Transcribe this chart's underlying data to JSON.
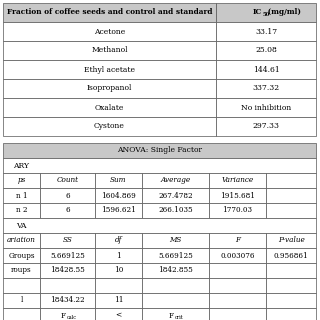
{
  "title1_col1": "Fraction of coffee seeds and control and standard",
  "title1_col2": "IC₅₀ (mg/ml)",
  "table1_rows": [
    [
      "Acetone",
      "33.17"
    ],
    [
      "Methanol",
      "25.08"
    ],
    [
      "Ethyl acetate",
      "144.61"
    ],
    [
      "Isopropanol",
      "337.32"
    ],
    [
      "Oxalate",
      "No inhibition"
    ],
    [
      "Cystone",
      "297.33"
    ]
  ],
  "anova_title": "ANOVA: Single Factor",
  "summary_label": "ARY",
  "summary_col0": "ps",
  "summary_header": [
    "Count",
    "Sum",
    "Average",
    "Variance"
  ],
  "summary_rows": [
    [
      "n 1",
      "6",
      "1604.869",
      "267.4782",
      "1915.681"
    ],
    [
      "n 2",
      "6",
      "1596.621",
      "266.1035",
      "1770.03"
    ]
  ],
  "anova_label": "VA",
  "anova_col0": "ariation",
  "anova_header": [
    "SS",
    "df",
    "MS",
    "F",
    "P-value"
  ],
  "anova_rows": [
    [
      "Groups",
      "5.669125",
      "1",
      "5.669125",
      "0.003076",
      "0.956861"
    ],
    [
      "roups",
      "18428.55",
      "10",
      "1842.855",
      "",
      ""
    ],
    [
      "",
      "",
      "",
      "",
      "",
      ""
    ],
    [
      "l",
      "18434.22",
      "11",
      "",
      "",
      ""
    ]
  ],
  "bg_header": "#c8c8c8",
  "bg_white": "#ffffff"
}
